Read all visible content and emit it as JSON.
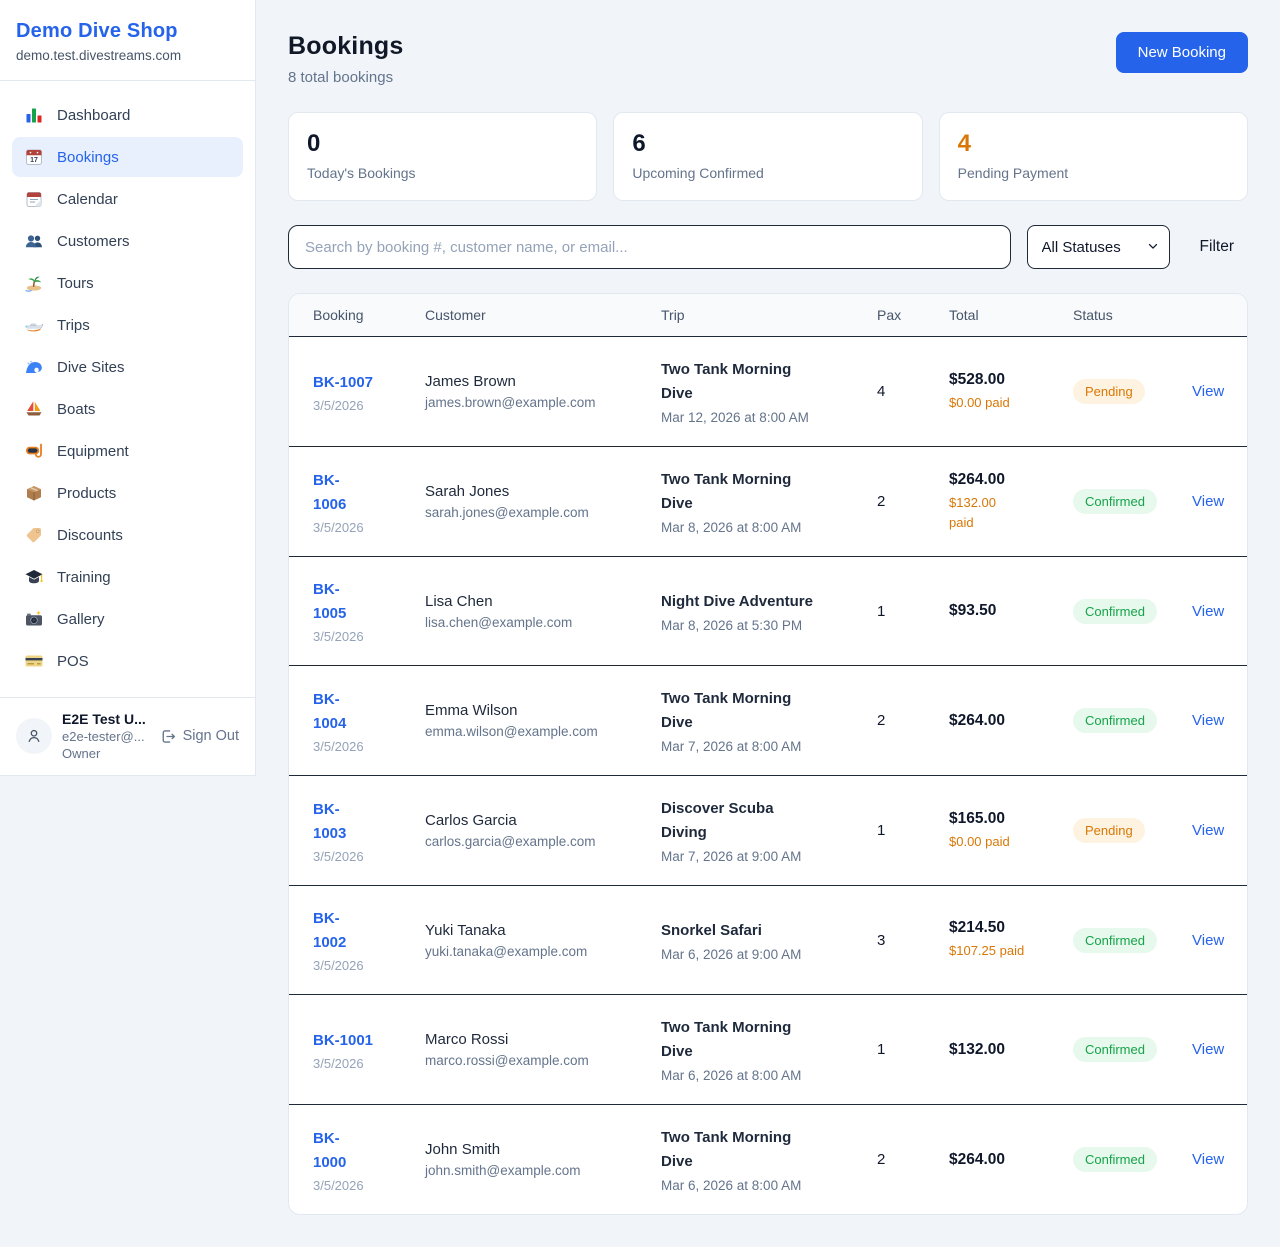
{
  "colors": {
    "accent_blue": "#2563eb",
    "warning_orange": "#d97706",
    "success_green": "#16a34a"
  },
  "sidebar": {
    "shop_name": "Demo Dive Shop",
    "domain": "demo.test.divestreams.com",
    "active_item": "Bookings",
    "items": [
      {
        "label": "Dashboard",
        "icon": "bar-chart"
      },
      {
        "label": "Bookings",
        "icon": "calendar-date"
      },
      {
        "label": "Calendar",
        "icon": "tear-calendar"
      },
      {
        "label": "Customers",
        "icon": "users"
      },
      {
        "label": "Tours",
        "icon": "island"
      },
      {
        "label": "Trips",
        "icon": "speedboat"
      },
      {
        "label": "Dive Sites",
        "icon": "wave"
      },
      {
        "label": "Boats",
        "icon": "sailboat"
      },
      {
        "label": "Equipment",
        "icon": "diving-mask"
      },
      {
        "label": "Products",
        "icon": "package"
      },
      {
        "label": "Discounts",
        "icon": "tag"
      },
      {
        "label": "Training",
        "icon": "graduation-cap"
      },
      {
        "label": "Gallery",
        "icon": "camera-flash"
      },
      {
        "label": "POS",
        "icon": "credit-card"
      }
    ],
    "user": {
      "name": "E2E Test U...",
      "email": "e2e-tester@...",
      "role": "Owner",
      "sign_out_label": "Sign Out"
    }
  },
  "header": {
    "title": "Bookings",
    "subtitle": "8 total bookings",
    "new_booking_label": "New Booking"
  },
  "stats": [
    {
      "value": "0",
      "label": "Today's Bookings",
      "highlight": false
    },
    {
      "value": "6",
      "label": "Upcoming Confirmed",
      "highlight": false
    },
    {
      "value": "4",
      "label": "Pending Payment",
      "highlight": true
    }
  ],
  "filters": {
    "search_placeholder": "Search by booking #, customer name, or email...",
    "status_select": "All Statuses",
    "filter_label": "Filter"
  },
  "table": {
    "columns": [
      "Booking",
      "Customer",
      "Trip",
      "Pax",
      "Total",
      "Status",
      ""
    ],
    "view_label": "View",
    "rows": [
      {
        "id": "BK-1007",
        "date": "3/5/2026",
        "customer_name": "James Brown",
        "customer_email": "james.brown@example.com",
        "trip_name": "Two Tank Morning\nDive",
        "trip_datetime": "Mar 12, 2026 at 8:00 AM",
        "pax": "4",
        "total": "$528.00",
        "paid": "$0.00 paid",
        "status": "Pending"
      },
      {
        "id": "BK-\n1006",
        "date": "3/5/2026",
        "customer_name": "Sarah Jones",
        "customer_email": "sarah.jones@example.com",
        "trip_name": "Two Tank Morning\nDive",
        "trip_datetime": "Mar 8, 2026 at 8:00 AM",
        "pax": "2",
        "total": "$264.00",
        "paid": "$132.00\npaid",
        "status": "Confirmed"
      },
      {
        "id": "BK-\n1005",
        "date": "3/5/2026",
        "customer_name": "Lisa Chen",
        "customer_email": "lisa.chen@example.com",
        "trip_name": "Night Dive Adventure",
        "trip_datetime": "Mar 8, 2026 at 5:30 PM",
        "pax": "1",
        "total": "$93.50",
        "paid": null,
        "status": "Confirmed"
      },
      {
        "id": "BK-\n1004",
        "date": "3/5/2026",
        "customer_name": "Emma Wilson",
        "customer_email": "emma.wilson@example.com",
        "trip_name": "Two Tank Morning\nDive",
        "trip_datetime": "Mar 7, 2026 at 8:00 AM",
        "pax": "2",
        "total": "$264.00",
        "paid": null,
        "status": "Confirmed"
      },
      {
        "id": "BK-\n1003",
        "date": "3/5/2026",
        "customer_name": "Carlos Garcia",
        "customer_email": "carlos.garcia@example.com",
        "trip_name": "Discover Scuba\nDiving",
        "trip_datetime": "Mar 7, 2026 at 9:00 AM",
        "pax": "1",
        "total": "$165.00",
        "paid": "$0.00 paid",
        "status": "Pending"
      },
      {
        "id": "BK-\n1002",
        "date": "3/5/2026",
        "customer_name": "Yuki Tanaka",
        "customer_email": "yuki.tanaka@example.com",
        "trip_name": "Snorkel Safari",
        "trip_datetime": "Mar 6, 2026 at 9:00 AM",
        "pax": "3",
        "total": "$214.50",
        "paid": "$107.25 paid",
        "status": "Confirmed"
      },
      {
        "id": "BK-1001",
        "date": "3/5/2026",
        "customer_name": "Marco Rossi",
        "customer_email": "marco.rossi@example.com",
        "trip_name": "Two Tank Morning\nDive",
        "trip_datetime": "Mar 6, 2026 at 8:00 AM",
        "pax": "1",
        "total": "$132.00",
        "paid": null,
        "status": "Confirmed"
      },
      {
        "id": "BK-\n1000",
        "date": "3/5/2026",
        "customer_name": "John Smith",
        "customer_email": "john.smith@example.com",
        "trip_name": "Two Tank Morning\nDive",
        "trip_datetime": "Mar 6, 2026 at 8:00 AM",
        "pax": "2",
        "total": "$264.00",
        "paid": null,
        "status": "Confirmed"
      }
    ]
  }
}
